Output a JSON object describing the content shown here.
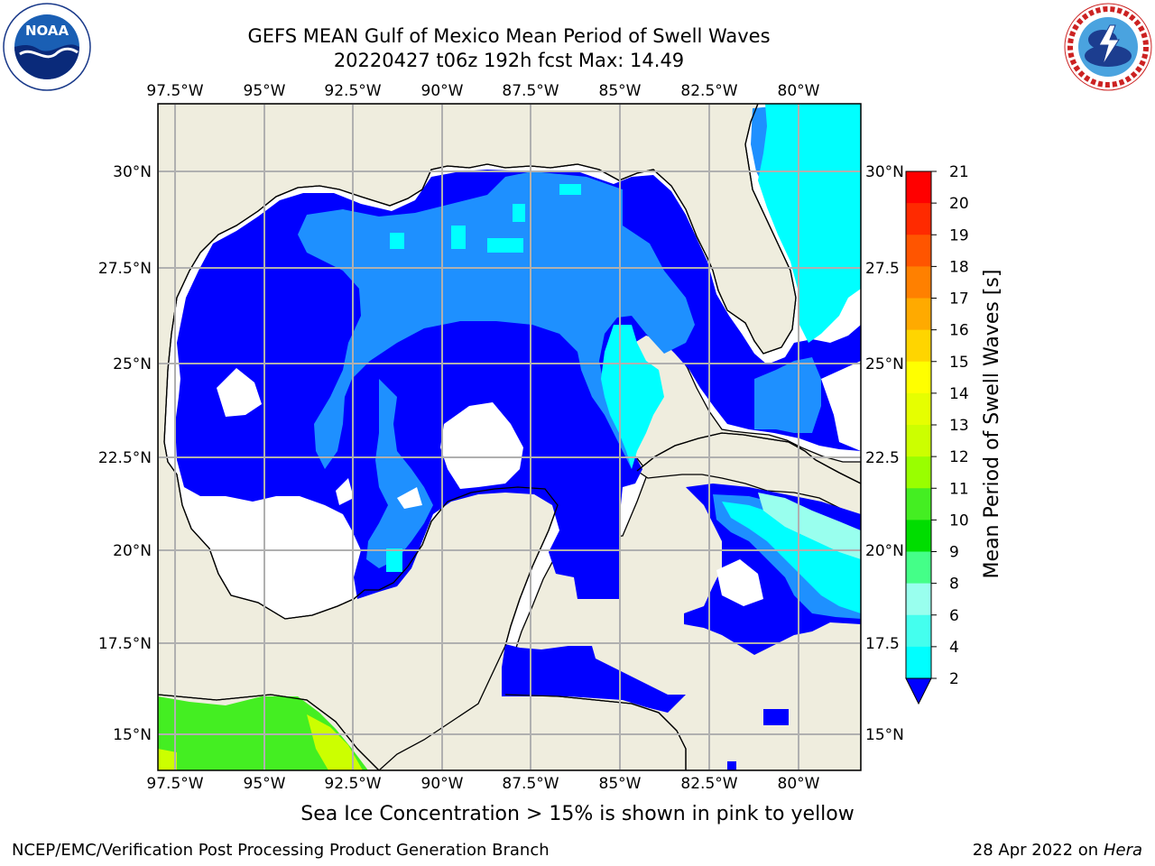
{
  "header": {
    "title_line1": "GEFS MEAN Gulf of Mexico Mean Period of Swell Waves",
    "title_line2": "20220427 t06z 192h fcst   Max: 14.49"
  },
  "map": {
    "lon_labels": [
      "97.5°W",
      "95°W",
      "92.5°W",
      "90°W",
      "87.5°W",
      "85°W",
      "82.5°W",
      "80°W"
    ],
    "lat_labels_left": [
      "30°N",
      "27.5°N",
      "25°N",
      "22.5°N",
      "20°N",
      "17.5°N",
      "15°N"
    ],
    "lat_labels_right": [
      "30°N",
      "27.5",
      "25°N",
      "22.5",
      "20°N",
      "17.5",
      "15°N"
    ],
    "colors": {
      "land": "#efedde",
      "ocean_none": "#ffffff",
      "swell_2_4": "#0000ff",
      "swell_4_6": "#1e90ff",
      "swell_6_8": "#00ffff",
      "swell_8_10": "#66ffee",
      "sea_ice_green": "#44ee22"
    }
  },
  "colorbar": {
    "label": "Mean Period of Swell Waves [s]",
    "ticks": [
      "21",
      "20",
      "19",
      "18",
      "17",
      "16",
      "15",
      "14",
      "13",
      "12",
      "11",
      "10",
      "9",
      "8",
      "6",
      "4",
      "2"
    ],
    "colors": [
      "#ff0000",
      "#ff2a00",
      "#ff5500",
      "#ff8000",
      "#ffaa00",
      "#ffd500",
      "#ffff00",
      "#e6ff00",
      "#ccff00",
      "#99ff00",
      "#44ee22",
      "#00dd00",
      "#44ff88",
      "#99ffee",
      "#44ffee",
      "#00ffff",
      "#1e90ff",
      "#0000ff"
    ]
  },
  "footer": {
    "note": "Sea Ice Concentration > 15% is shown in pink to yellow",
    "credit": "NCEP/EMC/Verification Post Processing Product Generation Branch",
    "date": "28 Apr 2022 on ",
    "host": "Hera"
  },
  "logos": {
    "noaa": "NOAA",
    "noaa_ring": "NATIONAL OCEANIC AND ATMOSPHERIC ADMINISTRATION · U.S. DEPARTMENT OF COMMERCE",
    "nws_ring": "NATIONAL WEATHER SERVICE"
  }
}
